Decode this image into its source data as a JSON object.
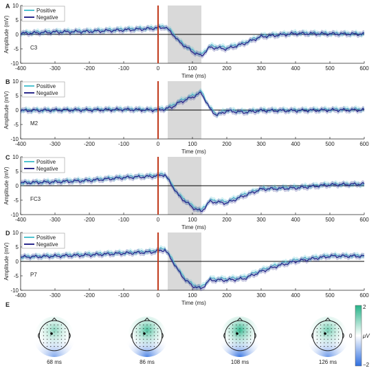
{
  "colors": {
    "positive": "#4fc3d0",
    "negative": "#2b2a8c",
    "stimulus": "#c0391b",
    "highlight": "#d9d9d9",
    "map_positive": "#27b389",
    "map_negative": "#2f6fe0"
  },
  "chart_data": [
    {
      "type": "line",
      "panel": "A",
      "channel": "C3",
      "xlabel": "Time (ms)",
      "ylabel": "Amplitude (mV)",
      "xlim": [
        -400,
        600
      ],
      "ylim": [
        -10,
        10
      ],
      "xticks": [
        -400,
        -300,
        -200,
        -100,
        0,
        100,
        200,
        300,
        400,
        500,
        600
      ],
      "yticks": [
        -10,
        -5,
        0,
        5,
        10
      ],
      "stimulus_time": 0,
      "highlight_window": [
        28,
        126
      ],
      "legend": "top-left",
      "series": [
        {
          "name": "Positive",
          "x": [
            -400,
            -300,
            -200,
            -100,
            -20,
            20,
            40,
            60,
            80,
            100,
            126,
            150,
            200,
            250,
            300,
            400,
            500,
            600
          ],
          "y": [
            0.5,
            1,
            1.2,
            1.8,
            2.2,
            2.8,
            1,
            -2,
            -4,
            -5.5,
            -7,
            -4,
            -4.5,
            -3,
            -0.5,
            0.5,
            0.3,
            0.2
          ]
        },
        {
          "name": "Negative",
          "x": [
            -400,
            -300,
            -200,
            -100,
            -20,
            20,
            40,
            60,
            80,
            100,
            126,
            150,
            200,
            250,
            300,
            400,
            500,
            600
          ],
          "y": [
            0.3,
            0.8,
            1,
            1.5,
            2,
            2.5,
            0.5,
            -2.5,
            -4.2,
            -6,
            -7.5,
            -4.5,
            -5,
            -3.2,
            -0.8,
            0.3,
            0.2,
            0.1
          ]
        }
      ]
    },
    {
      "type": "line",
      "panel": "B",
      "channel": "M2",
      "xlabel": "Time (ms)",
      "ylabel": "Amplitude (mV)",
      "xlim": [
        -400,
        600
      ],
      "ylim": [
        -10,
        10
      ],
      "xticks": [
        -400,
        -300,
        -200,
        -100,
        0,
        100,
        200,
        300,
        400,
        500,
        600
      ],
      "yticks": [
        -10,
        -5,
        0,
        5,
        10
      ],
      "stimulus_time": 0,
      "highlight_window": [
        28,
        126
      ],
      "legend": "top-left",
      "series": [
        {
          "name": "Positive",
          "x": [
            -400,
            -300,
            -200,
            -100,
            -20,
            20,
            40,
            60,
            80,
            100,
            126,
            150,
            170,
            200,
            250,
            300,
            400,
            500,
            600
          ],
          "y": [
            0,
            0,
            0.2,
            0.3,
            0.2,
            0.5,
            1.5,
            3,
            4,
            5,
            6.5,
            1,
            -1.5,
            0,
            -0.5,
            0,
            0,
            0.2,
            0.3
          ]
        },
        {
          "name": "Negative",
          "x": [
            -400,
            -300,
            -200,
            -100,
            -20,
            20,
            40,
            60,
            80,
            100,
            126,
            150,
            170,
            200,
            250,
            300,
            400,
            500,
            600
          ],
          "y": [
            -0.2,
            0,
            0,
            0.2,
            0,
            0.3,
            1,
            2.5,
            3.5,
            4.5,
            6,
            0.5,
            -1.8,
            -0.3,
            -0.8,
            -0.2,
            -0.2,
            0,
            0
          ]
        }
      ]
    },
    {
      "type": "line",
      "panel": "C",
      "channel": "FC3",
      "xlabel": "Time (ms)",
      "ylabel": "Amplitude (mV)",
      "xlim": [
        -400,
        600
      ],
      "ylim": [
        -10,
        10
      ],
      "xticks": [
        -400,
        -300,
        -200,
        -100,
        0,
        100,
        200,
        300,
        400,
        500,
        600
      ],
      "yticks": [
        -10,
        -5,
        0,
        5,
        10
      ],
      "stimulus_time": 0,
      "highlight_window": [
        28,
        126
      ],
      "legend": "top-left",
      "series": [
        {
          "name": "Positive",
          "x": [
            -400,
            -300,
            -200,
            -100,
            -20,
            20,
            40,
            60,
            80,
            100,
            126,
            150,
            200,
            250,
            300,
            400,
            500,
            600
          ],
          "y": [
            1,
            1.5,
            2,
            3,
            3.5,
            4,
            0.5,
            -3,
            -5,
            -7,
            -8.5,
            -5,
            -5.5,
            -3,
            -1,
            -0.5,
            0.5,
            0.5
          ]
        },
        {
          "name": "Negative",
          "x": [
            -400,
            -300,
            -200,
            -100,
            -20,
            20,
            40,
            60,
            80,
            100,
            126,
            150,
            200,
            250,
            300,
            400,
            500,
            600
          ],
          "y": [
            1,
            1.3,
            1.8,
            2.8,
            3.2,
            3.8,
            0.2,
            -3.5,
            -5.5,
            -7.5,
            -9,
            -5.5,
            -6,
            -3.5,
            -1.2,
            -0.8,
            0.3,
            0.6
          ]
        }
      ]
    },
    {
      "type": "line",
      "panel": "D",
      "channel": "P7",
      "xlabel": "Time (ms)",
      "ylabel": "Amplitude (mV)",
      "xlim": [
        -400,
        600
      ],
      "ylim": [
        -10,
        10
      ],
      "xticks": [
        -400,
        -300,
        -200,
        -100,
        0,
        100,
        200,
        300,
        400,
        500,
        600
      ],
      "yticks": [
        -10,
        -5,
        0,
        5,
        10
      ],
      "stimulus_time": 0,
      "highlight_window": [
        28,
        126
      ],
      "legend": "top-left",
      "series": [
        {
          "name": "Positive",
          "x": [
            -400,
            -300,
            -200,
            -100,
            -20,
            20,
            40,
            60,
            80,
            100,
            126,
            150,
            200,
            250,
            300,
            350,
            400,
            500,
            600
          ],
          "y": [
            1.5,
            2,
            2.5,
            3,
            3.5,
            4.5,
            1,
            -3,
            -6,
            -8,
            -9,
            -6,
            -6,
            -5.5,
            -3,
            -1,
            0.5,
            2,
            2
          ]
        },
        {
          "name": "Negative",
          "x": [
            -400,
            -300,
            -200,
            -100,
            -20,
            20,
            40,
            60,
            80,
            100,
            126,
            150,
            200,
            250,
            300,
            350,
            400,
            500,
            600
          ],
          "y": [
            1.5,
            1.8,
            2.2,
            2.8,
            3.2,
            4,
            0.5,
            -3.5,
            -6.5,
            -8.5,
            -9.5,
            -6.5,
            -6.5,
            -6,
            -3.5,
            -1.5,
            0,
            1.8,
            1.8
          ]
        }
      ]
    },
    {
      "type": "heatmap",
      "panel": "E",
      "colorbar": {
        "max_label": "2",
        "min_label": "−2",
        "mid_label": "0",
        "unit": "μV"
      },
      "maps": [
        {
          "time_label": "68 ms",
          "value": 0.4
        },
        {
          "time_label": "86 ms",
          "value": 0.9
        },
        {
          "time_label": "108 ms",
          "value": 1.1
        },
        {
          "time_label": "126 ms",
          "value": 0.6
        }
      ]
    }
  ]
}
